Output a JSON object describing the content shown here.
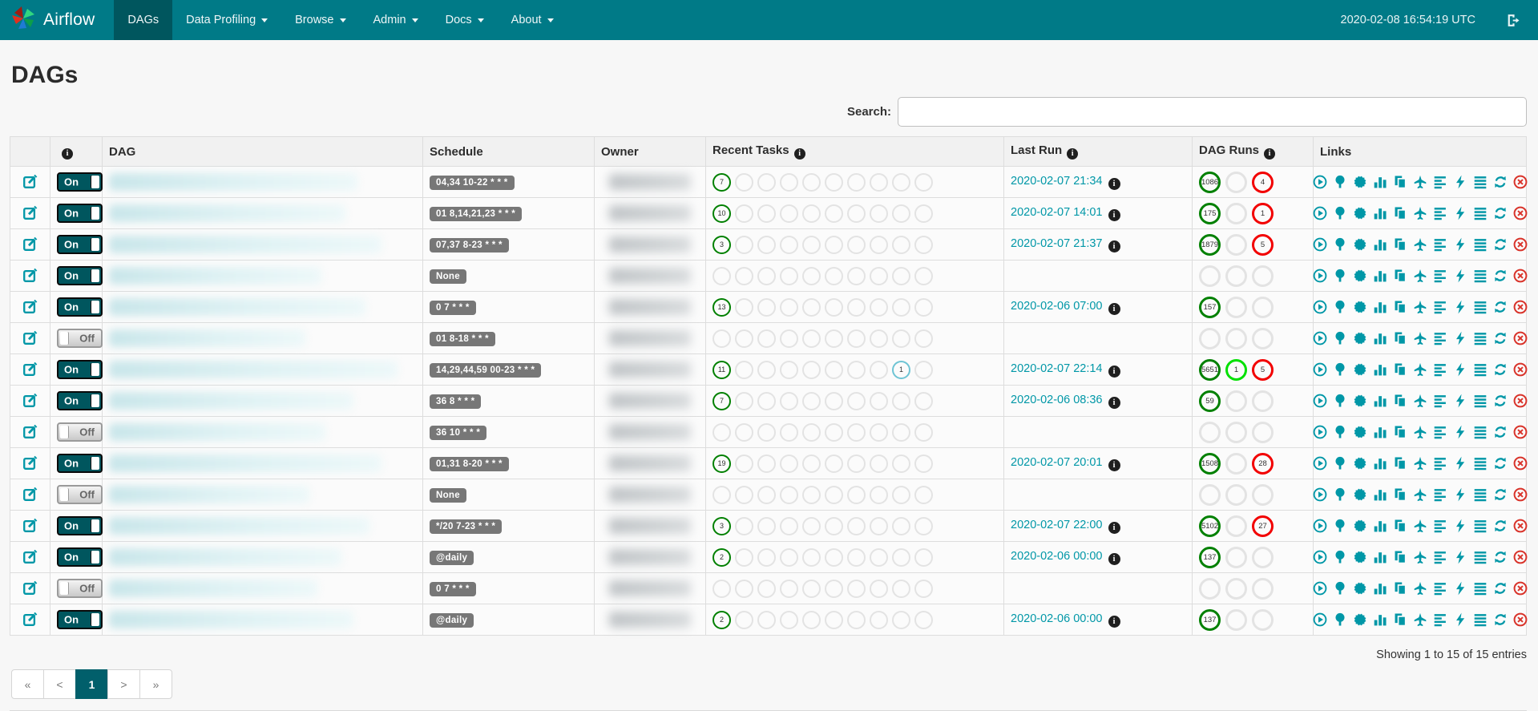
{
  "navbar": {
    "brand": "Airflow",
    "items": [
      {
        "label": "DAGs",
        "active": true,
        "caret": false
      },
      {
        "label": "Data Profiling",
        "active": false,
        "caret": true
      },
      {
        "label": "Browse",
        "active": false,
        "caret": true
      },
      {
        "label": "Admin",
        "active": false,
        "caret": true
      },
      {
        "label": "Docs",
        "active": false,
        "caret": true
      },
      {
        "label": "About",
        "active": false,
        "caret": true
      }
    ],
    "clock": "2020-02-08 16:54:19 UTC"
  },
  "page": {
    "title": "DAGs",
    "search_label": "Search:",
    "search_value": ""
  },
  "table": {
    "headers": {
      "dag": "DAG",
      "schedule": "Schedule",
      "owner": "Owner",
      "recent_tasks": "Recent Tasks",
      "last_run": "Last Run",
      "dag_runs": "DAG Runs",
      "links": "Links"
    },
    "toggle_on_label": "On",
    "toggle_off_label": "Off",
    "recent_task_slots": 10,
    "link_icons": [
      "trigger-dag",
      "tree-view",
      "graph-view",
      "task-duration",
      "task-tries",
      "landing-times",
      "gantt-view",
      "code-view",
      "log-view",
      "refresh",
      "delete-dag"
    ],
    "rows": [
      {
        "enabled": true,
        "schedule": "04,34 10-22 * * *",
        "recent": {
          "success": 7
        },
        "last_run": "2020-02-07 21:34",
        "runs": {
          "success": 1086,
          "running": null,
          "failed": 4
        }
      },
      {
        "enabled": true,
        "schedule": "01 8,14,21,23 * * *",
        "recent": {
          "success": 10
        },
        "last_run": "2020-02-07 14:01",
        "runs": {
          "success": 175,
          "running": null,
          "failed": 1
        }
      },
      {
        "enabled": true,
        "schedule": "07,37 8-23 * * *",
        "recent": {
          "success": 3
        },
        "last_run": "2020-02-07 21:37",
        "runs": {
          "success": 1879,
          "running": null,
          "failed": 5
        }
      },
      {
        "enabled": true,
        "schedule": "None",
        "recent": {},
        "last_run": null,
        "runs": {
          "success": null,
          "running": null,
          "failed": null
        }
      },
      {
        "enabled": true,
        "schedule": "0 7 * * *",
        "recent": {
          "success": 13
        },
        "last_run": "2020-02-06 07:00",
        "runs": {
          "success": 157,
          "running": null,
          "failed": null
        }
      },
      {
        "enabled": false,
        "schedule": "01 8-18 * * *",
        "recent": {},
        "last_run": null,
        "runs": {
          "success": null,
          "running": null,
          "failed": null
        }
      },
      {
        "enabled": true,
        "schedule": "14,29,44,59 00-23 * * *",
        "recent": {
          "success": 11,
          "up_for_reschedule": 1
        },
        "last_run": "2020-02-07 22:14",
        "runs": {
          "success": 5651,
          "running": 1,
          "failed": 5
        }
      },
      {
        "enabled": true,
        "schedule": "36 8 * * *",
        "recent": {
          "success": 7
        },
        "last_run": "2020-02-06 08:36",
        "runs": {
          "success": 59,
          "running": null,
          "failed": null
        }
      },
      {
        "enabled": false,
        "schedule": "36 10 * * *",
        "recent": {},
        "last_run": null,
        "runs": {
          "success": null,
          "running": null,
          "failed": null
        }
      },
      {
        "enabled": true,
        "schedule": "01,31 8-20 * * *",
        "recent": {
          "success": 19
        },
        "last_run": "2020-02-07 20:01",
        "runs": {
          "success": 1508,
          "running": null,
          "failed": 28
        }
      },
      {
        "enabled": false,
        "schedule": "None",
        "recent": {},
        "last_run": null,
        "runs": {
          "success": null,
          "running": null,
          "failed": null
        }
      },
      {
        "enabled": true,
        "schedule": "*/20 7-23 * * *",
        "recent": {
          "success": 3
        },
        "last_run": "2020-02-07 22:00",
        "runs": {
          "success": 5102,
          "running": null,
          "failed": 27
        }
      },
      {
        "enabled": true,
        "schedule": "@daily",
        "recent": {
          "success": 2
        },
        "last_run": "2020-02-06 00:00",
        "runs": {
          "success": 137,
          "running": null,
          "failed": null
        }
      },
      {
        "enabled": false,
        "schedule": "0 7 * * *",
        "recent": {},
        "last_run": null,
        "runs": {
          "success": null,
          "running": null,
          "failed": null
        }
      },
      {
        "enabled": true,
        "schedule": "@daily",
        "recent": {
          "success": 2
        },
        "last_run": "2020-02-06 00:00",
        "runs": {
          "success": 137,
          "running": null,
          "failed": null
        }
      }
    ]
  },
  "footer": {
    "showing": "Showing 1 to 15 of 15 entries",
    "pagination": [
      "«",
      "<",
      "1",
      ">",
      "»"
    ]
  },
  "colors": {
    "navbar": "#007A87",
    "navbar_active": "#00565E",
    "link": "#0097A7",
    "task_success": "#008000",
    "run_running": "#00e000",
    "run_failed": "#f20000",
    "task_up_for_reschedule": "#6ec4d4",
    "schedule_badge": "#777777",
    "delete_red": "#d9342b"
  }
}
